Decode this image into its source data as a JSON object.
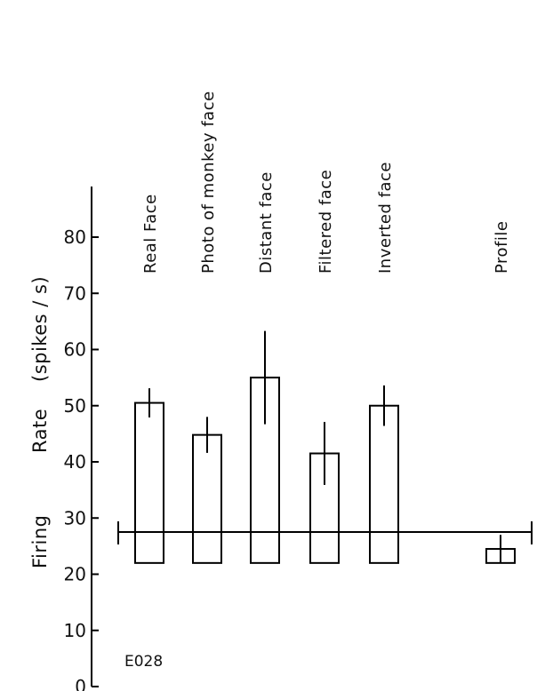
{
  "chart_data": {
    "type": "bar",
    "title": "",
    "categories": [
      "Real Face",
      "Photo of monkey face",
      "Distant face",
      "Filtered face",
      "Inverted face",
      "Profile"
    ],
    "series": [
      {
        "values": [
          50.5,
          44.8,
          55,
          41.5,
          50,
          24.5
        ],
        "error": [
          2.6,
          3.2,
          8.3,
          5.6,
          3.6,
          2.5
        ]
      }
    ],
    "baseline": 22,
    "ylabel_parts": [
      "Firing",
      "Rate",
      "(spikes / s)"
    ],
    "yticks": [
      0,
      10,
      20,
      30,
      40,
      50,
      60,
      70,
      80
    ],
    "ylim": [
      0,
      80
    ],
    "grid": false,
    "legend": "none",
    "annotation": "E028",
    "color": "#000000"
  }
}
